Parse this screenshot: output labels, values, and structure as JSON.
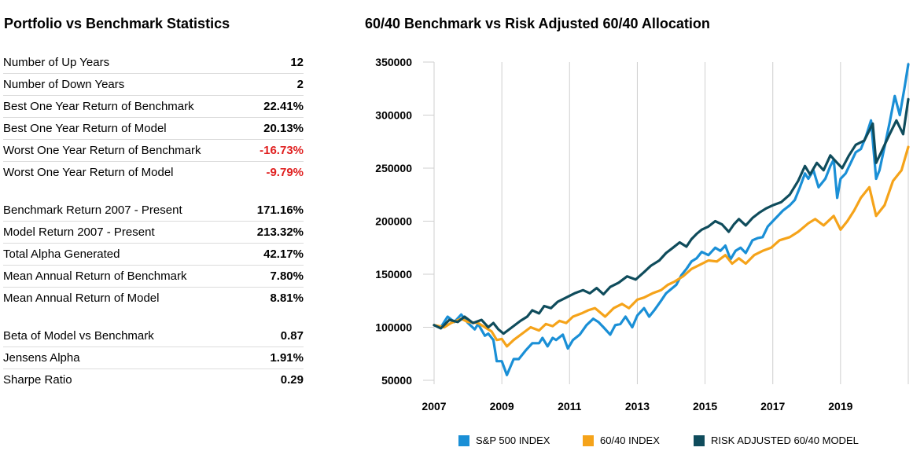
{
  "stats_title": "Portfolio vs Benchmark Statistics",
  "chart_title": "60/40 Benchmark vs Risk Adjusted 60/40 Allocation",
  "stats": {
    "group1": [
      {
        "label": "Number of Up Years",
        "value": "12"
      },
      {
        "label": "Number of Down Years",
        "value": "2"
      },
      {
        "label": "Best One Year Return of Benchmark",
        "value": "22.41%"
      },
      {
        "label": "Best One Year Return of Model",
        "value": "20.13%"
      },
      {
        "label": "Worst One Year Return of Benchmark",
        "value": "-16.73%"
      },
      {
        "label": "Worst One Year Return of Model",
        "value": "-9.79%"
      }
    ],
    "group2": [
      {
        "label": "Benchmark Return 2007 - Present",
        "value": "171.16%"
      },
      {
        "label": "Model Return 2007 - Present",
        "value": "213.32%"
      },
      {
        "label": "Total Alpha Generated",
        "value": "42.17%"
      },
      {
        "label": "Mean Annual Return of Benchmark",
        "value": "7.80%"
      },
      {
        "label": "Mean Annual Return of Model",
        "value": "8.81%"
      }
    ],
    "group3": [
      {
        "label": "Beta of Model vs Benchmark",
        "value": "0.87"
      },
      {
        "label": "Jensens Alpha",
        "value": "1.91%"
      },
      {
        "label": "Sharpe Ratio",
        "value": "0.29"
      }
    ]
  },
  "colors": {
    "negative": "#e02020",
    "sp500": "#1a8fd6",
    "sixty_forty": "#f5a31a",
    "model": "#0f4c5c"
  },
  "chart_data": {
    "type": "line",
    "title": "60/40 Benchmark vs Risk Adjusted 60/40 Allocation",
    "xlabel": "",
    "ylabel": "",
    "xlim": [
      2007,
      2021
    ],
    "ylim": [
      50000,
      350000
    ],
    "x_ticks": [
      "2007",
      "2009",
      "2011",
      "2013",
      "2015",
      "2017",
      "2019"
    ],
    "x_tick_values": [
      2007,
      2009,
      2011,
      2013,
      2015,
      2017,
      2019
    ],
    "y_ticks": [
      "50000",
      "100000",
      "150000",
      "200000",
      "250000",
      "300000",
      "350000"
    ],
    "y_tick_values": [
      50000,
      100000,
      150000,
      200000,
      250000,
      300000,
      350000
    ],
    "grid": "vertical",
    "legend": "bottom",
    "series": [
      {
        "name": "S&P 500 INDEX",
        "points": [
          [
            2007.0,
            102000
          ],
          [
            2007.2,
            100000
          ],
          [
            2007.4,
            110000
          ],
          [
            2007.6,
            105000
          ],
          [
            2007.8,
            112000
          ],
          [
            2008.0,
            104000
          ],
          [
            2008.2,
            98000
          ],
          [
            2008.3,
            103000
          ],
          [
            2008.5,
            92000
          ],
          [
            2008.6,
            94000
          ],
          [
            2008.75,
            88000
          ],
          [
            2008.85,
            68000
          ],
          [
            2009.0,
            68000
          ],
          [
            2009.15,
            55000
          ],
          [
            2009.35,
            70000
          ],
          [
            2009.5,
            70000
          ],
          [
            2009.7,
            78000
          ],
          [
            2009.9,
            85000
          ],
          [
            2010.1,
            85000
          ],
          [
            2010.2,
            90000
          ],
          [
            2010.35,
            82000
          ],
          [
            2010.5,
            90000
          ],
          [
            2010.6,
            88000
          ],
          [
            2010.8,
            93000
          ],
          [
            2010.95,
            80000
          ],
          [
            2011.1,
            88000
          ],
          [
            2011.3,
            93000
          ],
          [
            2011.5,
            102000
          ],
          [
            2011.7,
            108000
          ],
          [
            2011.85,
            105000
          ],
          [
            2012.0,
            100000
          ],
          [
            2012.2,
            93000
          ],
          [
            2012.35,
            102000
          ],
          [
            2012.5,
            103000
          ],
          [
            2012.65,
            110000
          ],
          [
            2012.85,
            100000
          ],
          [
            2013.0,
            111000
          ],
          [
            2013.2,
            118000
          ],
          [
            2013.35,
            110000
          ],
          [
            2013.5,
            116000
          ],
          [
            2013.7,
            125000
          ],
          [
            2013.85,
            132000
          ],
          [
            2014.0,
            136000
          ],
          [
            2014.15,
            140000
          ],
          [
            2014.3,
            149000
          ],
          [
            2014.45,
            155000
          ],
          [
            2014.6,
            162000
          ],
          [
            2014.75,
            165000
          ],
          [
            2014.9,
            171000
          ],
          [
            2015.1,
            168000
          ],
          [
            2015.3,
            175000
          ],
          [
            2015.45,
            172000
          ],
          [
            2015.6,
            177000
          ],
          [
            2015.75,
            164000
          ],
          [
            2015.9,
            172000
          ],
          [
            2016.05,
            175000
          ],
          [
            2016.2,
            170000
          ],
          [
            2016.4,
            182000
          ],
          [
            2016.55,
            184000
          ],
          [
            2016.7,
            185000
          ],
          [
            2016.85,
            195000
          ],
          [
            2017.0,
            200000
          ],
          [
            2017.15,
            205000
          ],
          [
            2017.3,
            210000
          ],
          [
            2017.5,
            215000
          ],
          [
            2017.65,
            220000
          ],
          [
            2017.8,
            232000
          ],
          [
            2017.95,
            245000
          ],
          [
            2018.05,
            240000
          ],
          [
            2018.2,
            248000
          ],
          [
            2018.35,
            232000
          ],
          [
            2018.55,
            240000
          ],
          [
            2018.7,
            252000
          ],
          [
            2018.8,
            258000
          ],
          [
            2018.9,
            222000
          ],
          [
            2019.0,
            240000
          ],
          [
            2019.15,
            245000
          ],
          [
            2019.3,
            255000
          ],
          [
            2019.45,
            265000
          ],
          [
            2019.6,
            268000
          ],
          [
            2019.75,
            280000
          ],
          [
            2019.9,
            295000
          ],
          [
            2020.05,
            240000
          ],
          [
            2020.15,
            248000
          ],
          [
            2020.3,
            270000
          ],
          [
            2020.45,
            293000
          ],
          [
            2020.6,
            318000
          ],
          [
            2020.75,
            300000
          ],
          [
            2020.9,
            328000
          ],
          [
            2021.0,
            348000
          ]
        ]
      },
      {
        "name": "60/40 INDEX",
        "points": [
          [
            2007.0,
            102000
          ],
          [
            2007.3,
            100000
          ],
          [
            2007.5,
            104000
          ],
          [
            2007.8,
            108000
          ],
          [
            2008.0,
            105000
          ],
          [
            2008.3,
            104000
          ],
          [
            2008.5,
            100000
          ],
          [
            2008.7,
            96000
          ],
          [
            2008.85,
            88000
          ],
          [
            2009.0,
            89000
          ],
          [
            2009.15,
            82000
          ],
          [
            2009.35,
            88000
          ],
          [
            2009.6,
            94000
          ],
          [
            2009.85,
            100000
          ],
          [
            2010.1,
            97000
          ],
          [
            2010.3,
            103000
          ],
          [
            2010.5,
            101000
          ],
          [
            2010.7,
            106000
          ],
          [
            2010.9,
            104000
          ],
          [
            2011.1,
            110000
          ],
          [
            2011.35,
            113000
          ],
          [
            2011.55,
            116000
          ],
          [
            2011.75,
            118000
          ],
          [
            2011.9,
            114000
          ],
          [
            2012.05,
            110000
          ],
          [
            2012.3,
            118000
          ],
          [
            2012.55,
            122000
          ],
          [
            2012.75,
            118000
          ],
          [
            2013.0,
            126000
          ],
          [
            2013.2,
            128000
          ],
          [
            2013.45,
            132000
          ],
          [
            2013.7,
            135000
          ],
          [
            2013.9,
            140000
          ],
          [
            2014.1,
            143000
          ],
          [
            2014.35,
            148000
          ],
          [
            2014.6,
            155000
          ],
          [
            2014.85,
            159000
          ],
          [
            2015.1,
            163000
          ],
          [
            2015.35,
            162000
          ],
          [
            2015.6,
            168000
          ],
          [
            2015.8,
            160000
          ],
          [
            2016.0,
            165000
          ],
          [
            2016.2,
            160000
          ],
          [
            2016.45,
            168000
          ],
          [
            2016.7,
            172000
          ],
          [
            2016.95,
            175000
          ],
          [
            2017.2,
            182000
          ],
          [
            2017.5,
            185000
          ],
          [
            2017.75,
            190000
          ],
          [
            2018.05,
            198000
          ],
          [
            2018.25,
            202000
          ],
          [
            2018.5,
            196000
          ],
          [
            2018.8,
            205000
          ],
          [
            2019.0,
            192000
          ],
          [
            2019.2,
            200000
          ],
          [
            2019.4,
            210000
          ],
          [
            2019.6,
            222000
          ],
          [
            2019.85,
            232000
          ],
          [
            2020.05,
            205000
          ],
          [
            2020.3,
            215000
          ],
          [
            2020.55,
            238000
          ],
          [
            2020.8,
            248000
          ],
          [
            2021.0,
            270000
          ]
        ]
      },
      {
        "name": "RISK ADJUSTED 60/40 MODEL",
        "points": [
          [
            2007.0,
            102000
          ],
          [
            2007.2,
            99000
          ],
          [
            2007.45,
            107000
          ],
          [
            2007.7,
            105000
          ],
          [
            2007.9,
            110000
          ],
          [
            2008.15,
            104000
          ],
          [
            2008.4,
            107000
          ],
          [
            2008.6,
            100000
          ],
          [
            2008.75,
            104000
          ],
          [
            2008.9,
            98000
          ],
          [
            2009.05,
            94000
          ],
          [
            2009.3,
            100000
          ],
          [
            2009.55,
            106000
          ],
          [
            2009.75,
            110000
          ],
          [
            2009.9,
            116000
          ],
          [
            2010.1,
            113000
          ],
          [
            2010.25,
            120000
          ],
          [
            2010.45,
            118000
          ],
          [
            2010.65,
            124000
          ],
          [
            2010.9,
            128000
          ],
          [
            2011.15,
            132000
          ],
          [
            2011.4,
            135000
          ],
          [
            2011.6,
            132000
          ],
          [
            2011.8,
            137000
          ],
          [
            2012.0,
            131000
          ],
          [
            2012.2,
            138000
          ],
          [
            2012.45,
            142000
          ],
          [
            2012.7,
            148000
          ],
          [
            2012.95,
            145000
          ],
          [
            2013.2,
            152000
          ],
          [
            2013.4,
            158000
          ],
          [
            2013.65,
            163000
          ],
          [
            2013.85,
            170000
          ],
          [
            2014.05,
            175000
          ],
          [
            2014.25,
            180000
          ],
          [
            2014.45,
            176000
          ],
          [
            2014.6,
            183000
          ],
          [
            2014.75,
            188000
          ],
          [
            2014.9,
            192000
          ],
          [
            2015.1,
            195000
          ],
          [
            2015.3,
            200000
          ],
          [
            2015.5,
            197000
          ],
          [
            2015.7,
            190000
          ],
          [
            2015.85,
            197000
          ],
          [
            2016.0,
            202000
          ],
          [
            2016.2,
            196000
          ],
          [
            2016.4,
            203000
          ],
          [
            2016.6,
            208000
          ],
          [
            2016.8,
            212000
          ],
          [
            2017.0,
            215000
          ],
          [
            2017.25,
            218000
          ],
          [
            2017.5,
            225000
          ],
          [
            2017.75,
            238000
          ],
          [
            2017.95,
            252000
          ],
          [
            2018.1,
            244000
          ],
          [
            2018.3,
            255000
          ],
          [
            2018.5,
            248000
          ],
          [
            2018.7,
            262000
          ],
          [
            2018.9,
            255000
          ],
          [
            2019.05,
            250000
          ],
          [
            2019.25,
            262000
          ],
          [
            2019.45,
            272000
          ],
          [
            2019.7,
            276000
          ],
          [
            2019.95,
            292000
          ],
          [
            2020.05,
            255000
          ],
          [
            2020.2,
            265000
          ],
          [
            2020.45,
            282000
          ],
          [
            2020.65,
            295000
          ],
          [
            2020.85,
            282000
          ],
          [
            2021.0,
            315000
          ]
        ]
      }
    ]
  }
}
